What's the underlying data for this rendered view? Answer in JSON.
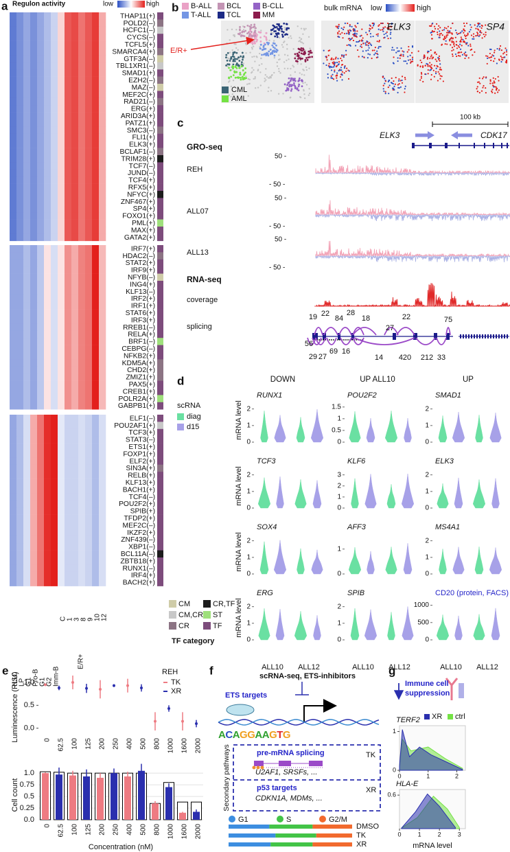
{
  "panels": {
    "a": {
      "letter": "a",
      "title": "Regulon activity",
      "scale_low": "low",
      "scale_high": "high",
      "low_color": "#2a4fc4",
      "high_color": "#e3201c",
      "columns": [
        "HSC",
        "LP",
        "G1",
        "Pro-B",
        "G1",
        "G2",
        "Imm-B",
        "C",
        "1",
        "3",
        "8",
        "9",
        "10",
        "12"
      ],
      "group_label": "E/R+",
      "blocks": [
        {
          "regulons": [
            "THAP11(+)",
            "POLD2(–)",
            "HCFC1(–)",
            "CYCS(–)",
            "TCFL5(+)",
            "SMARCA4(+)",
            "GTF3A(–)",
            "TBL1XR1(–)",
            "SMAD1(+)",
            "EZH2(–)",
            "MAZ(–)",
            "MEF2C(+)",
            "RAD21(–)",
            "ERG(+)",
            "ARID3A(+)",
            "PATZ1(+)",
            "SMC3(–)",
            "FLI1(+)",
            "ELK3(+)",
            "BCLAF1(–)",
            "TRIM28(+)",
            "TCF7(–)",
            "JUND(–)",
            "TCF4(+)",
            "RFX5(+)",
            "NFYC(+)",
            "ZNF467(+)",
            "SP4(+)",
            "FOXO1(+)",
            "PML(+)",
            "MAX(+)",
            "GATA2(+)"
          ],
          "categories": [
            "TF",
            "CR",
            "CM,CR",
            "TF",
            "TF",
            "CR",
            "CM",
            "CM,CR",
            "TF",
            "CR",
            "CM",
            "TF",
            "CR",
            "TF",
            "TF",
            "TF",
            "CR",
            "TF",
            "TF",
            "CR",
            "CR,TF",
            "TF",
            "TF",
            "TF",
            "TF",
            "CR,TF",
            "TF",
            "TF",
            "TF",
            "ST",
            "TF",
            "TF"
          ],
          "profile": [
            -1.2,
            -1.0,
            -0.8,
            -1.0,
            -0.8,
            -0.6,
            -0.4,
            0.3,
            1.2,
            1.3,
            1.0,
            1.2,
            1.4,
            0.6
          ]
        },
        {
          "regulons": [
            "IRF7(+)",
            "HDAC2(–)",
            "STAT2(+)",
            "IRF9(+)",
            "NFYB(–)",
            "ING4(+)",
            "KLF13(–)",
            "IRF2(+)",
            "IRF1(+)",
            "STAT6(+)",
            "IRF3(+)",
            "RREB1(–)",
            "RELA(+)",
            "BRF1(–)",
            "CEBPG(–)",
            "NFKB2(+)",
            "KDM5A(+)",
            "CHD2(+)",
            "ZMIZ1(+)",
            "PAX5(+)",
            "CREB1(+)",
            "POLR2A(+)",
            "GABPB1(+)"
          ],
          "categories": [
            "TF",
            "CR",
            "TF",
            "TF",
            "CM",
            "TF",
            "TF",
            "TF",
            "TF",
            "TF",
            "TF",
            "TF",
            "TF",
            "ST",
            "TF",
            "TF",
            "CR",
            "CR",
            "CR",
            "TF",
            "TF",
            "ST",
            "TF"
          ],
          "profile": [
            -0.8,
            -0.8,
            -0.6,
            -0.8,
            -0.5,
            0.2,
            -0.3,
            0.2,
            0.8,
            0.6,
            0.9,
            1.0,
            1.6,
            0.5
          ]
        },
        {
          "regulons": [
            "ELF1(–)",
            "POU2AF1(+)",
            "TCF3(+)",
            "STAT3(–)",
            "ETS1(+)",
            "FOXP1(+)",
            "ELF2(+)",
            "SIN3A(+)",
            "RELB(+)",
            "KLF13(+)",
            "BACH1(+)",
            "TCF4(–)",
            "POU2F2(+)",
            "SPIB(+)",
            "TFDP2(+)",
            "MEF2C(–)",
            "IKZF2(+)",
            "ZNF439(–)",
            "XBP1(–)",
            "BCL11A(–)",
            "ZBTB18(+)",
            "RUNX1(–)",
            "IRF4(+)",
            "BACH2(+)"
          ],
          "categories": [
            "TF",
            "CM,CR",
            "TF",
            "TF",
            "TF",
            "TF",
            "TF",
            "CR",
            "TF",
            "TF",
            "TF",
            "TF",
            "TF",
            "TF",
            "TF",
            "TF",
            "TF",
            "TF",
            "TF",
            "CR,TF",
            "TF",
            "TF",
            "TF",
            "TF"
          ],
          "profile": [
            -0.8,
            -0.6,
            -0.3,
            0.6,
            1.0,
            1.5,
            1.6,
            -0.2,
            -0.4,
            -0.4,
            -0.3,
            -0.4,
            -0.6,
            -0.3
          ]
        }
      ],
      "legend_title": "TF category",
      "legend": [
        {
          "label": "CM",
          "color": "#cfcca8"
        },
        {
          "label": "CM,CR",
          "color": "#c8c8c8"
        },
        {
          "label": "CR",
          "color": "#8c7484"
        },
        {
          "label": "CR,TF",
          "color": "#1c1c1c"
        },
        {
          "label": "ST",
          "color": "#9fe07c"
        },
        {
          "label": "TF",
          "color": "#7d4c7c"
        }
      ]
    },
    "b": {
      "letter": "b",
      "legend": [
        {
          "label": "B-ALL",
          "color": "#eaa2c6"
        },
        {
          "label": "BCL",
          "color": "#c394b4"
        },
        {
          "label": "B-CLL",
          "color": "#9463c6"
        },
        {
          "label": "T-ALL",
          "color": "#7496e4"
        },
        {
          "label": "TCL",
          "color": "#1c2a86"
        },
        {
          "label": "MM",
          "color": "#8c1c4c"
        },
        {
          "label": "CML",
          "color": "#3b6474"
        },
        {
          "label": "AML",
          "color": "#74e244"
        }
      ],
      "annotation": "E/R+",
      "bulk_label": "bulk mRNA",
      "scale_low": "low",
      "scale_high": "high",
      "low_color": "#2a4fc4",
      "high_color": "#e3201c",
      "genes": [
        "ELK3",
        "SP4"
      ]
    },
    "c": {
      "letter": "c",
      "scale_bar": "100 kb",
      "genes": [
        "ELK3",
        "CDK17"
      ],
      "gro_title": "GRO-seq",
      "samples": [
        "REH",
        "ALL07",
        "ALL13"
      ],
      "axis_top": "50 -",
      "axis_bottom": "- 50 -",
      "rna_title": "RNA-seq",
      "coverage": "coverage",
      "splicing": "splicing",
      "junctions_top": [
        19,
        22,
        84,
        28,
        18,
        22,
        75,
        27
      ],
      "junctions_bottom": [
        56,
        29,
        27,
        69,
        16,
        14,
        420,
        212,
        33
      ]
    },
    "d": {
      "letter": "d",
      "headers": [
        "DOWN",
        "UP ALL10",
        "UP"
      ],
      "legend_title": "scRNA",
      "legend": [
        {
          "label": "diag",
          "color": "#6ae0a2"
        },
        {
          "label": "d15",
          "color": "#a7a1e8"
        }
      ],
      "y_label": "mRNA level",
      "samples": [
        "ALL10",
        "ALL12"
      ],
      "plots": [
        {
          "gene": "RUNX1",
          "ylim": [
            0,
            2.4
          ],
          "yticks": [
            0,
            1,
            2
          ]
        },
        {
          "gene": "POU2F2",
          "ylim": [
            0,
            1.7
          ],
          "yticks": [
            0,
            0.5,
            1,
            1.5
          ]
        },
        {
          "gene": "SMAD1",
          "ylim": [
            0,
            2.4
          ],
          "yticks": [
            0,
            1,
            2
          ]
        },
        {
          "gene": "TCF3",
          "ylim": [
            0,
            2.4
          ],
          "yticks": [
            0,
            1,
            2
          ]
        },
        {
          "gene": "KLF6",
          "ylim": [
            0,
            3.6
          ],
          "yticks": [
            0,
            1,
            2,
            3
          ]
        },
        {
          "gene": "ELK3",
          "ylim": [
            0,
            2.4
          ],
          "yticks": [
            0,
            1,
            2
          ]
        },
        {
          "gene": "SOX4",
          "ylim": [
            0,
            2.4
          ],
          "yticks": [
            0,
            1,
            2
          ]
        },
        {
          "gene": "AFF3",
          "ylim": [
            0,
            1.6
          ],
          "yticks": [
            0,
            1
          ]
        },
        {
          "gene": "MS4A1",
          "ylim": [
            0,
            2.4
          ],
          "yticks": [
            0,
            1,
            2
          ]
        },
        {
          "gene": "ERG",
          "ylim": [
            0,
            2.4
          ],
          "yticks": [
            0,
            1,
            2
          ]
        },
        {
          "gene": "SPIB",
          "ylim": [
            0,
            2.4
          ],
          "yticks": [
            0,
            1,
            2
          ]
        },
        {
          "gene": "CD20 (protein, FACS)",
          "ylim": [
            0,
            1150
          ],
          "yticks": [
            0,
            500,
            1000
          ]
        }
      ]
    },
    "e": {
      "letter": "e",
      "legend_title": "REH",
      "x_label": "Concentration (nM)",
      "categories": [
        "0",
        "62.5",
        "100",
        "125",
        "200",
        "250",
        "400",
        "500",
        "800",
        "1000",
        "1600",
        "2000"
      ],
      "top": {
        "y_label": "Luminescence (RLU)",
        "ylim": [
          -0.08,
          1.12
        ],
        "yticks": [
          {
            "value": 0,
            "label": "0.0"
          },
          0.5,
          {
            "value": 1,
            "label": "1.0"
          }
        ],
        "series": [
          {
            "name": "TK",
            "color": "#ee7b82",
            "values": [
              0.95,
              null,
              1.0,
              null,
              0.85,
              null,
              0.93,
              null,
              0.15,
              null,
              0.15,
              null
            ],
            "errors": [
              0.01,
              null,
              0.15,
              null,
              0.2,
              null,
              0.15,
              null,
              0.2,
              null,
              0.2,
              null
            ]
          },
          {
            "name": "XR",
            "color": "#2a2fae",
            "values": [
              null,
              0.88,
              null,
              0.87,
              null,
              0.93,
              null,
              0.88,
              null,
              0.43,
              null,
              0.1
            ],
            "errors": [
              null,
              0.05,
              null,
              0.1,
              null,
              0.03,
              null,
              0.08,
              null,
              0.07,
              null,
              0.08
            ]
          }
        ]
      },
      "bottom": {
        "y_label": "Cell count",
        "ylim": [
          0,
          1.12
        ],
        "yticks": [
          {
            "value": 0,
            "label": "0.0"
          },
          0.25,
          0.5,
          0.75,
          {
            "value": 1,
            "label": "1.0"
          }
        ],
        "series": [
          {
            "color": "#ffffff",
            "values": [
              1.03,
              1.02,
              1.0,
              1.0,
              1.0,
              1.0,
              1.0,
              1.0,
              0.35,
              0.8,
              0.38,
              0.38
            ]
          },
          {
            "color": "#ee7b82",
            "values": [
              1.0,
              null,
              0.95,
              null,
              0.9,
              null,
              0.93,
              null,
              0.35,
              null,
              0.15,
              null
            ],
            "errors": [
              0.02,
              null,
              0.1,
              null,
              0.1,
              null,
              0.1,
              null,
              0.05,
              null,
              0.02,
              null
            ]
          },
          {
            "color": "#2a2fae",
            "values": [
              null,
              0.97,
              null,
              0.93,
              null,
              1.0,
              null,
              1.05,
              null,
              0.7,
              null,
              0.17
            ],
            "errors": [
              null,
              0.15,
              null,
              0.15,
              null,
              0.1,
              null,
              0.15,
              null,
              0.08,
              null,
              0.05
            ]
          }
        ]
      }
    },
    "f": {
      "letter": "f",
      "title": "scRNA-seq, ETS-inhibitors",
      "ets": "ETS targets",
      "motif": "ACAGGAAGTG",
      "side_label": "Secondary pathways",
      "pathways": [
        {
          "title": "pre-mRNA splicing",
          "drug": "TK",
          "genes": "U2AF1, SRSFs, ..."
        },
        {
          "title": "p53 targets",
          "drug": "XR",
          "genes": "CDKN1A, MDMs, ..."
        }
      ],
      "phases": [
        {
          "label": "G1",
          "color": "#3d8ee0"
        },
        {
          "label": "S",
          "color": "#43c447"
        },
        {
          "label": "G2/M",
          "color": "#f26a2e"
        }
      ],
      "conditions": [
        "DMSO",
        "TK",
        "XR"
      ]
    },
    "g": {
      "letter": "g",
      "title_lines": [
        "Immune cell",
        "suppression"
      ],
      "legend": [
        {
          "label": "XR",
          "color": "#2a2fae"
        },
        {
          "label": "ctrl",
          "color": "#74e244"
        }
      ],
      "x_label": "mRNA level",
      "plots": [
        {
          "gene": "TERF2",
          "xticks": [
            0,
            1,
            2
          ],
          "yticks": [
            0,
            1
          ]
        },
        {
          "gene": "HLA-E",
          "xticks": [
            0,
            1,
            2,
            3
          ],
          "yticks": [
            0.6
          ]
        }
      ]
    }
  }
}
